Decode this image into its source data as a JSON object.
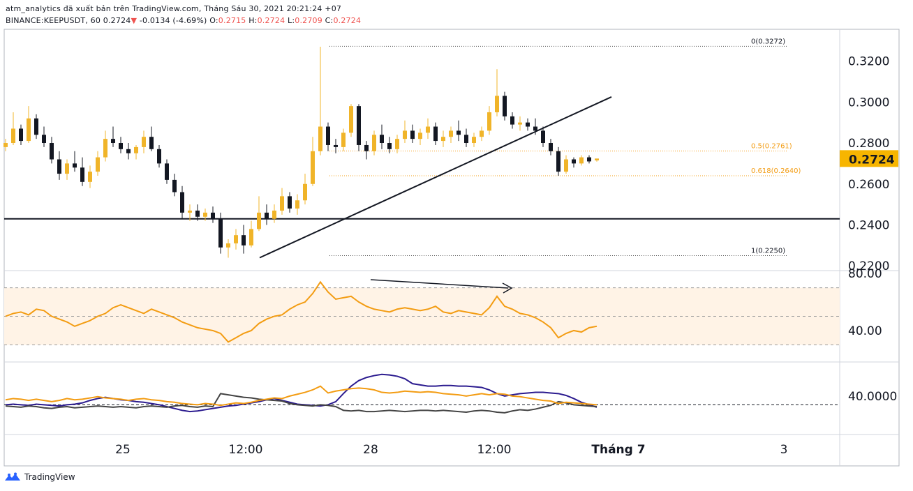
{
  "header": {
    "line1": "atm_analytics đã xuất bản trên TradingView.com, Tháng Sáu 30, 2021 20:21:24 +07",
    "symbol": "BINANCE:KEEPUSDT, 60",
    "last": "0.2724",
    "arrow": "▼",
    "change": "-0.0134 (-4.69%)",
    "o_label": "O:",
    "o_value": "0.2715",
    "h_label": "H:",
    "h_value": "0.2724",
    "l_label": "L:",
    "l_value": "0.2709",
    "c_label": "C:",
    "c_value": "0.2724"
  },
  "footer": {
    "brand": "TradingView"
  },
  "colors": {
    "up": "#f0b429",
    "down": "#131722",
    "rsi": "#f39c12",
    "osc_navy": "#2b1b8f",
    "osc_gray": "#444444",
    "osc_orange": "#f39c12",
    "fib": "#f39c12",
    "price_tag_bg": "#f7b500"
  },
  "chart_data": [
    {
      "type": "candlestick",
      "title": "BINANCE:KEEPUSDT, 60",
      "y_ticks": [
        "0.3200",
        "0.3000",
        "0.2800",
        "0.2600",
        "0.2400",
        "0.2200"
      ],
      "ylim": [
        0.2177,
        0.3355
      ],
      "x_ticks": [
        "25",
        "12:00",
        "28",
        "12:00",
        "Tháng 7",
        "3"
      ],
      "last_price": "0.2724",
      "candles_hourly": [
        [
          0.278,
          0.282,
          0.276,
          0.28
        ],
        [
          0.28,
          0.295,
          0.279,
          0.287
        ],
        [
          0.287,
          0.289,
          0.279,
          0.281
        ],
        [
          0.281,
          0.298,
          0.28,
          0.292
        ],
        [
          0.292,
          0.294,
          0.282,
          0.284
        ],
        [
          0.284,
          0.288,
          0.278,
          0.28
        ],
        [
          0.28,
          0.283,
          0.27,
          0.272
        ],
        [
          0.272,
          0.276,
          0.262,
          0.265
        ],
        [
          0.265,
          0.272,
          0.262,
          0.27
        ],
        [
          0.27,
          0.276,
          0.266,
          0.268
        ],
        [
          0.268,
          0.273,
          0.259,
          0.261
        ],
        [
          0.261,
          0.269,
          0.258,
          0.266
        ],
        [
          0.266,
          0.276,
          0.264,
          0.273
        ],
        [
          0.273,
          0.286,
          0.271,
          0.282
        ],
        [
          0.282,
          0.288,
          0.278,
          0.28
        ],
        [
          0.28,
          0.283,
          0.275,
          0.277
        ],
        [
          0.277,
          0.28,
          0.272,
          0.275
        ],
        [
          0.275,
          0.279,
          0.272,
          0.278
        ],
        [
          0.278,
          0.286,
          0.275,
          0.283
        ],
        [
          0.283,
          0.288,
          0.276,
          0.277
        ],
        [
          0.277,
          0.279,
          0.268,
          0.27
        ],
        [
          0.27,
          0.272,
          0.26,
          0.262
        ],
        [
          0.262,
          0.265,
          0.254,
          0.256
        ],
        [
          0.256,
          0.259,
          0.243,
          0.246
        ],
        [
          0.246,
          0.25,
          0.242,
          0.247
        ],
        [
          0.247,
          0.25,
          0.242,
          0.244
        ],
        [
          0.244,
          0.248,
          0.242,
          0.246
        ],
        [
          0.246,
          0.249,
          0.241,
          0.243
        ],
        [
          0.243,
          0.246,
          0.226,
          0.229
        ],
        [
          0.229,
          0.233,
          0.224,
          0.231
        ],
        [
          0.231,
          0.238,
          0.228,
          0.235
        ],
        [
          0.235,
          0.24,
          0.226,
          0.23
        ],
        [
          0.23,
          0.242,
          0.229,
          0.238
        ],
        [
          0.238,
          0.254,
          0.237,
          0.246
        ],
        [
          0.246,
          0.25,
          0.24,
          0.243
        ],
        [
          0.243,
          0.25,
          0.241,
          0.247
        ],
        [
          0.247,
          0.258,
          0.245,
          0.254
        ],
        [
          0.254,
          0.256,
          0.246,
          0.248
        ],
        [
          0.248,
          0.255,
          0.245,
          0.252
        ],
        [
          0.252,
          0.265,
          0.25,
          0.26
        ],
        [
          0.26,
          0.283,
          0.259,
          0.276
        ],
        [
          0.276,
          0.327,
          0.274,
          0.288
        ],
        [
          0.288,
          0.29,
          0.276,
          0.279
        ],
        [
          0.279,
          0.282,
          0.275,
          0.278
        ],
        [
          0.278,
          0.287,
          0.276,
          0.285
        ],
        [
          0.285,
          0.299,
          0.283,
          0.298
        ],
        [
          0.298,
          0.299,
          0.276,
          0.279
        ],
        [
          0.279,
          0.281,
          0.272,
          0.276
        ],
        [
          0.276,
          0.286,
          0.274,
          0.284
        ],
        [
          0.284,
          0.289,
          0.277,
          0.28
        ],
        [
          0.28,
          0.283,
          0.275,
          0.277
        ],
        [
          0.277,
          0.284,
          0.275,
          0.282
        ],
        [
          0.282,
          0.291,
          0.28,
          0.286
        ],
        [
          0.286,
          0.289,
          0.28,
          0.282
        ],
        [
          0.282,
          0.287,
          0.279,
          0.285
        ],
        [
          0.285,
          0.292,
          0.282,
          0.288
        ],
        [
          0.288,
          0.29,
          0.279,
          0.281
        ],
        [
          0.281,
          0.286,
          0.278,
          0.283
        ],
        [
          0.283,
          0.288,
          0.28,
          0.286
        ],
        [
          0.286,
          0.291,
          0.281,
          0.284
        ],
        [
          0.284,
          0.287,
          0.278,
          0.28
        ],
        [
          0.28,
          0.285,
          0.278,
          0.283
        ],
        [
          0.283,
          0.288,
          0.281,
          0.286
        ],
        [
          0.286,
          0.298,
          0.284,
          0.295
        ],
        [
          0.295,
          0.316,
          0.293,
          0.303
        ],
        [
          0.303,
          0.305,
          0.291,
          0.293
        ],
        [
          0.293,
          0.295,
          0.287,
          0.289
        ],
        [
          0.289,
          0.293,
          0.286,
          0.29
        ],
        [
          0.29,
          0.292,
          0.286,
          0.288
        ],
        [
          0.288,
          0.292,
          0.284,
          0.286
        ],
        [
          0.286,
          0.288,
          0.278,
          0.28
        ],
        [
          0.28,
          0.282,
          0.274,
          0.276
        ],
        [
          0.276,
          0.278,
          0.264,
          0.266
        ],
        [
          0.266,
          0.274,
          0.265,
          0.272
        ],
        [
          0.272,
          0.273,
          0.268,
          0.27
        ],
        [
          0.27,
          0.274,
          0.269,
          0.273
        ],
        [
          0.273,
          0.274,
          0.27,
          0.271
        ],
        [
          0.2715,
          0.2724,
          0.2709,
          0.2724
        ]
      ],
      "horizontal_line": 0.243,
      "trendline": [
        [
          0,
          0.224
        ],
        [
          1,
          0.3025
        ]
      ],
      "fibonacci": [
        {
          "label": "0(0.3272)",
          "value": 0.3272
        },
        {
          "label": "0.5(0.2761)",
          "value": 0.2761
        },
        {
          "label": "0.618(0.2640)",
          "value": 0.264
        },
        {
          "label": "1(0.2250)",
          "value": 0.225
        }
      ]
    },
    {
      "type": "line",
      "name": "RSI",
      "y_ticks": [
        "80.00",
        "40.00"
      ],
      "ylim": [
        18,
        82
      ],
      "bands": [
        30,
        50,
        70
      ],
      "values": [
        50,
        52,
        53,
        51,
        55,
        54,
        50,
        48,
        46,
        43,
        45,
        47,
        50,
        52,
        56,
        58,
        56,
        54,
        52,
        55,
        53,
        51,
        49,
        46,
        44,
        42,
        41,
        40,
        38,
        32,
        35,
        38,
        40,
        45,
        48,
        50,
        51,
        55,
        58,
        60,
        66,
        74,
        67,
        62,
        63,
        64,
        60,
        57,
        55,
        54,
        53,
        55,
        56,
        55,
        54,
        55,
        57,
        53,
        52,
        54,
        53,
        52,
        51,
        56,
        64,
        57,
        55,
        52,
        51,
        49,
        46,
        42,
        35,
        38,
        40,
        39,
        42,
        43
      ]
    },
    {
      "type": "line",
      "name": "oscillator",
      "y_ticks": [
        "40.0000"
      ],
      "ylim": [
        -22,
        95
      ],
      "dashed_level": 26,
      "series": [
        {
          "values": [
            26,
            27,
            26,
            25,
            27,
            26,
            25,
            24,
            26,
            27,
            29,
            33,
            36,
            38,
            36,
            34,
            33,
            31,
            30,
            28,
            26,
            23,
            20,
            17,
            15,
            16,
            18,
            20,
            22,
            24,
            25,
            27,
            29,
            31,
            34,
            36,
            33,
            30,
            27,
            26,
            25,
            24,
            26,
            31,
            44,
            56,
            65,
            70,
            73,
            75,
            74,
            72,
            68,
            60,
            58,
            56,
            56,
            57,
            57,
            56,
            56,
            55,
            54,
            50,
            44,
            40,
            42,
            44,
            45,
            46,
            46,
            45,
            44,
            41,
            36,
            30,
            26,
            22
          ]
        },
        {
          "values": [
            24,
            23,
            22,
            24,
            23,
            21,
            20,
            22,
            23,
            21,
            22,
            23,
            24,
            23,
            22,
            23,
            22,
            21,
            23,
            24,
            23,
            22,
            24,
            25,
            23,
            22,
            24,
            23,
            44,
            42,
            40,
            38,
            37,
            35,
            34,
            33,
            32,
            28,
            26,
            25,
            24,
            26,
            25,
            23,
            17,
            16,
            17,
            15,
            15,
            16,
            17,
            16,
            15,
            16,
            17,
            17,
            16,
            17,
            16,
            15,
            14,
            16,
            17,
            16,
            14,
            13,
            16,
            18,
            17,
            19,
            22,
            25,
            31,
            29,
            26,
            25,
            24,
            23
          ]
        },
        {
          "values": [
            34,
            36,
            35,
            33,
            35,
            33,
            31,
            33,
            36,
            34,
            35,
            37,
            39,
            37,
            36,
            35,
            33,
            35,
            36,
            34,
            33,
            31,
            30,
            28,
            27,
            26,
            28,
            27,
            25,
            27,
            29,
            28,
            30,
            33,
            35,
            37,
            36,
            40,
            43,
            46,
            50,
            56,
            45,
            48,
            50,
            52,
            53,
            52,
            50,
            46,
            45,
            46,
            48,
            47,
            46,
            47,
            46,
            44,
            43,
            42,
            40,
            42,
            44,
            42,
            44,
            43,
            40,
            39,
            37,
            35,
            33,
            32,
            28,
            30,
            29,
            28,
            27,
            26
          ]
        }
      ]
    }
  ]
}
